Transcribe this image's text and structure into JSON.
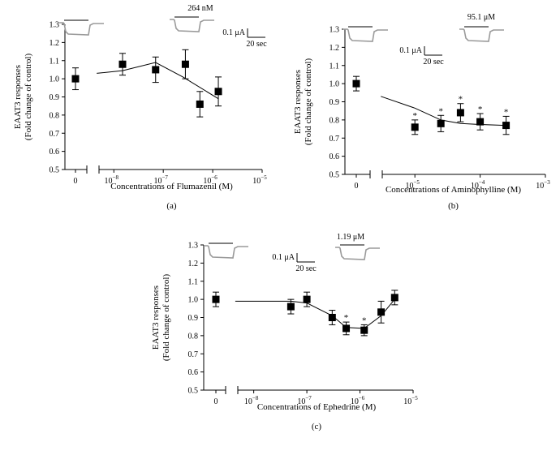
{
  "chart_data": [
    {
      "type": "scatter",
      "panel_label": "(a)",
      "ylabel_lines": [
        "EAAT3 responses",
        "(Fold change of control)"
      ],
      "xlabel": "Concentrations of Flumazenil (M)",
      "ylim": [
        0.5,
        1.3
      ],
      "yticks": [
        "0.5",
        "0.6",
        "0.7",
        "0.8",
        "0.9",
        "1.0",
        "1.1",
        "1.2",
        "1.3"
      ],
      "xlim_log10": [
        -8.3,
        -5
      ],
      "xticks": [
        {
          "base": "10",
          "exp": "−8",
          "log": -8
        },
        {
          "base": "10",
          "exp": "−7",
          "log": -7
        },
        {
          "base": "10",
          "exp": "−6",
          "log": -6
        },
        {
          "base": "10",
          "exp": "−5",
          "log": -5
        }
      ],
      "control": {
        "label": "0",
        "value": 1.0,
        "err": 0.06
      },
      "points": [
        {
          "x": 1.5e-08,
          "y": 1.08,
          "err": 0.06,
          "sig": false
        },
        {
          "x": 7e-08,
          "y": 1.05,
          "err": 0.07,
          "sig": false
        },
        {
          "x": 2.8e-07,
          "y": 1.08,
          "err": 0.08,
          "sig": false
        },
        {
          "x": 5.5e-07,
          "y": 0.86,
          "err": 0.07,
          "sig": false
        },
        {
          "x": 1.3e-06,
          "y": 0.93,
          "err": 0.08,
          "sig": false
        }
      ],
      "fit": [
        {
          "x": 4.5e-09,
          "y": 1.03
        },
        {
          "x": 1.5e-08,
          "y": 1.045
        },
        {
          "x": 7e-08,
          "y": 1.09
        },
        {
          "x": 2.5e-07,
          "y": 1.01
        },
        {
          "x": 1.3e-06,
          "y": 0.89
        }
      ],
      "concentration_label": "264 nM",
      "scale_current": "0.1 μA",
      "scale_time": "20 sec"
    },
    {
      "type": "scatter",
      "panel_label": "(b)",
      "ylabel_lines": [
        "EAAT3 responses",
        "(Fold change of control)"
      ],
      "xlabel": "Concentrations of Aminophylline (M)",
      "ylim": [
        0.5,
        1.3
      ],
      "yticks": [
        "0.5",
        "0.6",
        "0.7",
        "0.8",
        "0.9",
        "1.0",
        "1.1",
        "1.2",
        "1.3"
      ],
      "xlim_log10": [
        -5.5,
        -3
      ],
      "xticks": [
        {
          "base": "10",
          "exp": "−5",
          "log": -5
        },
        {
          "base": "10",
          "exp": "−4",
          "log": -4
        },
        {
          "base": "10",
          "exp": "−3",
          "log": -3
        }
      ],
      "control": {
        "label": "0",
        "value": 1.0,
        "err": 0.04
      },
      "points": [
        {
          "x": 1e-05,
          "y": 0.76,
          "err": 0.04,
          "sig": true
        },
        {
          "x": 2.5e-05,
          "y": 0.78,
          "err": 0.045,
          "sig": true
        },
        {
          "x": 5e-05,
          "y": 0.84,
          "err": 0.05,
          "sig": true
        },
        {
          "x": 0.0001,
          "y": 0.79,
          "err": 0.045,
          "sig": true
        },
        {
          "x": 0.00025,
          "y": 0.77,
          "err": 0.05,
          "sig": true
        }
      ],
      "fit": [
        {
          "x": 3e-06,
          "y": 0.93
        },
        {
          "x": 1e-05,
          "y": 0.865
        },
        {
          "x": 2.5e-05,
          "y": 0.8
        },
        {
          "x": 5e-05,
          "y": 0.78
        },
        {
          "x": 0.0001,
          "y": 0.775
        },
        {
          "x": 0.00025,
          "y": 0.77
        }
      ],
      "concentration_label": "95.1 μM",
      "scale_current": "0.1 μA",
      "scale_time": "20 sec"
    },
    {
      "type": "scatter",
      "panel_label": "(c)",
      "ylabel_lines": [
        "EAAT3 responses",
        "(Fold change of control)"
      ],
      "xlabel": "Concentrations of Ephedrine (M)",
      "ylim": [
        0.5,
        1.3
      ],
      "yticks": [
        "0.5",
        "0.6",
        "0.7",
        "0.8",
        "0.9",
        "1.0",
        "1.1",
        "1.2",
        "1.3"
      ],
      "xlim_log10": [
        -8.3,
        -5
      ],
      "xticks": [
        {
          "base": "10",
          "exp": "−8",
          "log": -8
        },
        {
          "base": "10",
          "exp": "−7",
          "log": -7
        },
        {
          "base": "10",
          "exp": "−6",
          "log": -6
        },
        {
          "base": "10",
          "exp": "−5",
          "log": -5
        }
      ],
      "control": {
        "label": "0",
        "value": 1.0,
        "err": 0.04
      },
      "points": [
        {
          "x": 5e-08,
          "y": 0.96,
          "err": 0.04,
          "sig": false
        },
        {
          "x": 1e-07,
          "y": 1.0,
          "err": 0.04,
          "sig": false
        },
        {
          "x": 3e-07,
          "y": 0.9,
          "err": 0.04,
          "sig": false
        },
        {
          "x": 5.5e-07,
          "y": 0.84,
          "err": 0.035,
          "sig": true
        },
        {
          "x": 1.2e-06,
          "y": 0.83,
          "err": 0.03,
          "sig": true
        },
        {
          "x": 2.5e-06,
          "y": 0.93,
          "err": 0.06,
          "sig": false
        },
        {
          "x": 4.5e-06,
          "y": 1.01,
          "err": 0.04,
          "sig": false
        }
      ],
      "fit": [
        {
          "x": 4.5e-09,
          "y": 0.99
        },
        {
          "x": 5e-08,
          "y": 0.99
        },
        {
          "x": 1e-07,
          "y": 0.98
        },
        {
          "x": 3e-07,
          "y": 0.91
        },
        {
          "x": 5.5e-07,
          "y": 0.845
        },
        {
          "x": 1.2e-06,
          "y": 0.84
        },
        {
          "x": 2.5e-06,
          "y": 0.91
        },
        {
          "x": 4.5e-06,
          "y": 1.0
        }
      ],
      "concentration_label": "1.19 μM",
      "scale_current": "0.1 μA",
      "scale_time": "20 sec"
    }
  ]
}
